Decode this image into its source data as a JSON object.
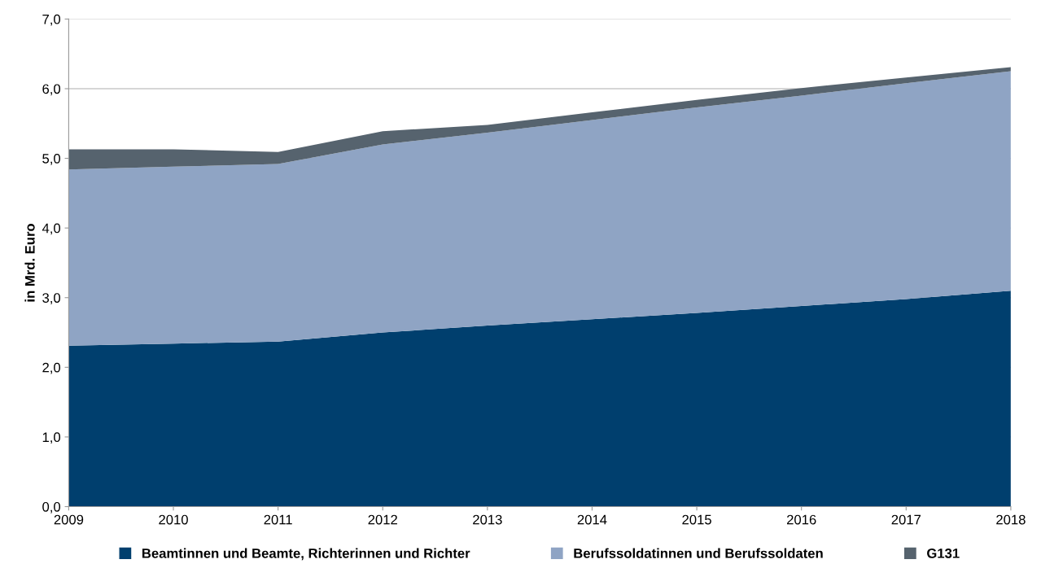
{
  "chart_data": {
    "type": "area",
    "stacked": true,
    "ylabel": "in Mrd. Euro",
    "x": [
      2009,
      2010,
      2011,
      2012,
      2013,
      2014,
      2015,
      2016,
      2017,
      2018
    ],
    "series": [
      {
        "name": "Beamtinnen und Beamte, Richterinnen und Richter",
        "color": "#003f6e",
        "values": [
          2.31,
          2.34,
          2.37,
          2.5,
          2.6,
          2.69,
          2.78,
          2.88,
          2.98,
          3.1
        ]
      },
      {
        "name": "Berufssoldatinnen und Berufssoldaten",
        "color": "#8fa4c4",
        "values": [
          2.53,
          2.54,
          2.55,
          2.7,
          2.77,
          2.86,
          2.95,
          3.02,
          3.1,
          3.15
        ]
      },
      {
        "name": "G131",
        "color": "#56636e",
        "values": [
          0.29,
          0.25,
          0.17,
          0.19,
          0.11,
          0.11,
          0.11,
          0.11,
          0.08,
          0.06
        ]
      }
    ],
    "xlim": [
      2009,
      2018
    ],
    "xticks": [
      2009,
      2010,
      2011,
      2012,
      2013,
      2014,
      2015,
      2016,
      2017,
      2018
    ],
    "ylim": [
      0,
      7
    ],
    "yticks": [
      {
        "value": 0,
        "label": "0,0"
      },
      {
        "value": 1,
        "label": "1,0"
      },
      {
        "value": 2,
        "label": "2,0"
      },
      {
        "value": 3,
        "label": "3,0"
      },
      {
        "value": 4,
        "label": "4,0"
      },
      {
        "value": 5,
        "label": "5,0"
      },
      {
        "value": 6,
        "label": "6,0"
      },
      {
        "value": 7,
        "label": "7,0"
      }
    ],
    "grid": "y",
    "legend": "bottom"
  }
}
